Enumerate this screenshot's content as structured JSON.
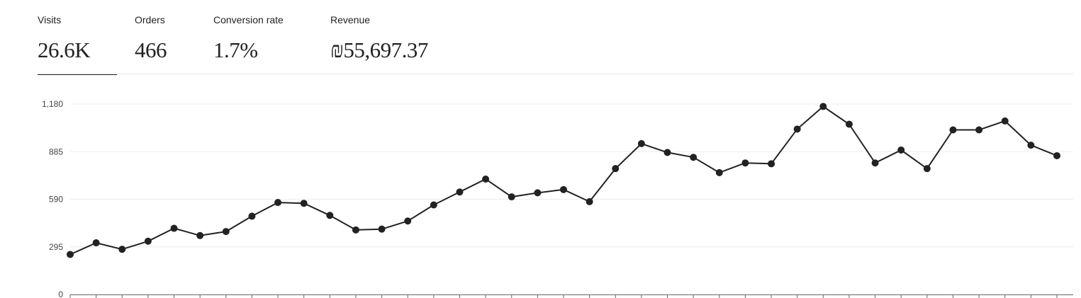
{
  "metrics": [
    {
      "label": "Visits",
      "value": "26.6K",
      "selected": true
    },
    {
      "label": "Orders",
      "value": "466",
      "selected": false
    },
    {
      "label": "Conversion rate",
      "value": "1.7%",
      "selected": false
    },
    {
      "label": "Revenue",
      "value": "₪55,697.37",
      "selected": false
    }
  ],
  "colors": {
    "line": "#222222",
    "grid": "#eeeeee",
    "axis": "#666666",
    "divider": "#e3e3e3"
  },
  "chart_data": {
    "type": "line",
    "title": "",
    "xlabel": "",
    "ylabel": "",
    "ylim": [
      0,
      1180
    ],
    "yticks": [
      0,
      295,
      590,
      885,
      1180
    ],
    "ytick_labels": [
      "0",
      "295",
      "590",
      "885",
      "1,180"
    ],
    "grid": true,
    "legend": "none",
    "x": [
      1,
      2,
      3,
      4,
      5,
      6,
      7,
      8,
      9,
      10,
      11,
      12,
      13,
      14,
      15,
      16,
      17,
      18,
      19,
      20,
      21,
      22,
      23,
      24,
      25,
      26,
      27,
      28,
      29,
      30,
      31,
      32,
      33,
      34,
      35,
      36,
      37,
      38,
      39
    ],
    "series": [
      {
        "values": [
          248,
          320,
          280,
          330,
          410,
          365,
          390,
          485,
          570,
          565,
          490,
          400,
          405,
          455,
          555,
          635,
          715,
          605,
          630,
          650,
          575,
          780,
          935,
          880,
          850,
          755,
          815,
          810,
          1025,
          1165,
          1055,
          815,
          895,
          780,
          1020,
          1020,
          1075,
          925,
          860
        ]
      }
    ]
  }
}
